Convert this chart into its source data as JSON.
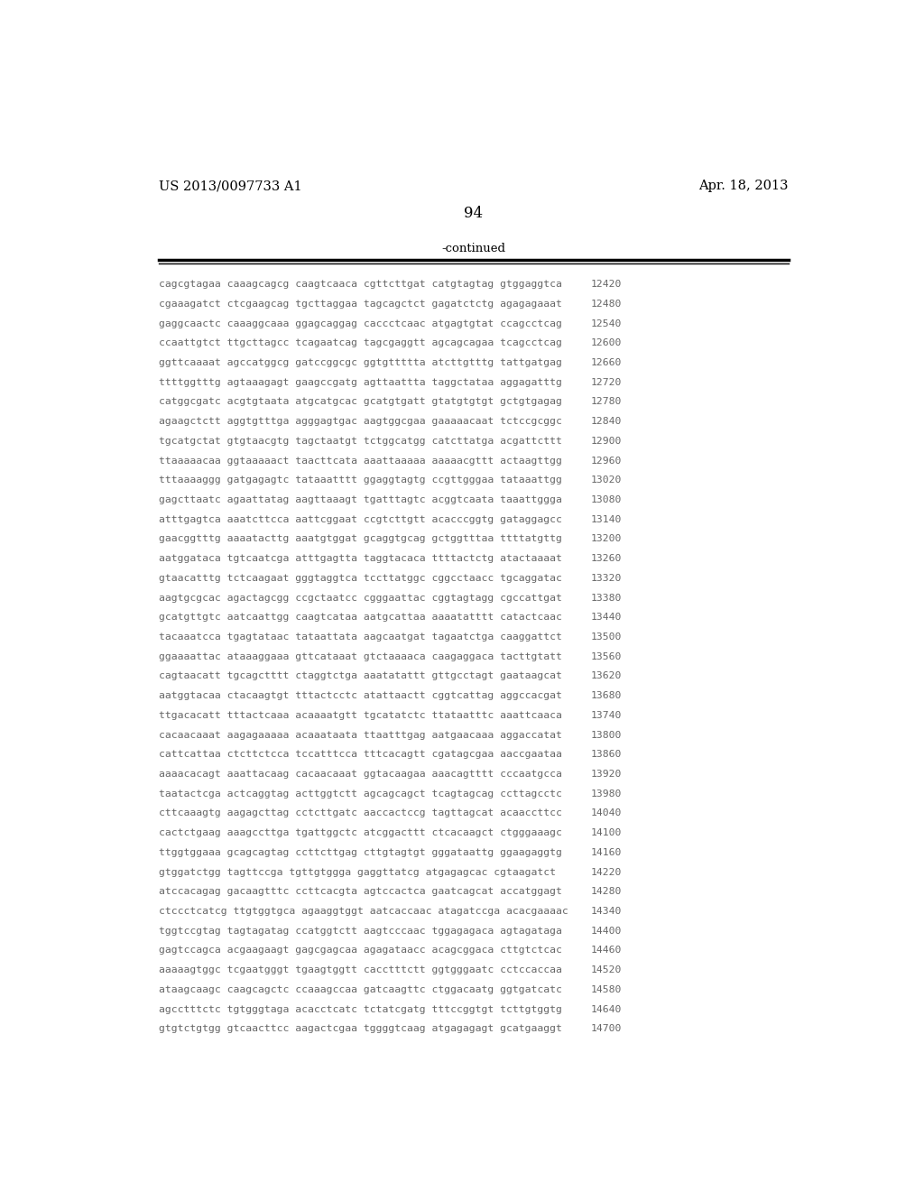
{
  "header_left": "US 2013/0097733 A1",
  "header_right": "Apr. 18, 2013",
  "page_number": "94",
  "continued_text": "-continued",
  "background_color": "#ffffff",
  "text_color": "#000000",
  "seq_color": "#666666",
  "sequence_lines": [
    [
      "cagcgtagaa caaagcagcg caagtcaaca cgttcttgat catgtagtag gtggaggtca",
      "12420"
    ],
    [
      "cgaaagatct ctcgaagcag tgcttaggaa tagcagctct gagatctctg agagagaaat",
      "12480"
    ],
    [
      "gaggcaactc caaaggcaaa ggagcaggag caccctcaac atgagtgtat ccagcctcag",
      "12540"
    ],
    [
      "ccaattgtct ttgcttagcc tcagaatcag tagcgaggtt agcagcagaa tcagcctcag",
      "12600"
    ],
    [
      "ggttcaaaat agccatggcg gatccggcgc ggtgttttta atcttgtttg tattgatgag",
      "12660"
    ],
    [
      "ttttggtttg agtaaagagt gaagccgatg agttaattta taggctataa aggagatttg",
      "12720"
    ],
    [
      "catggcgatc acgtgtaata atgcatgcac gcatgtgatt gtatgtgtgt gctgtgagag",
      "12780"
    ],
    [
      "agaagctctt aggtgtttga agggagtgac aagtggcgaa gaaaaacaat tctccgcggc",
      "12840"
    ],
    [
      "tgcatgctat gtgtaacgtg tagctaatgt tctggcatgg catcttatga acgattcttt",
      "12900"
    ],
    [
      "ttaaaaacaa ggtaaaaact taacttcata aaattaaaaa aaaaacgttt actaagttgg",
      "12960"
    ],
    [
      "tttaaaaggg gatgagagtc tataaatttt ggaggtagtg ccgttgggaa tataaattgg",
      "13020"
    ],
    [
      "gagcttaatc agaattatag aagttaaagt tgatttagtc acggtcaata taaattggga",
      "13080"
    ],
    [
      "atttgagtca aaatcttcca aattcggaat ccgtcttgtt acacccggtg gataggagcc",
      "13140"
    ],
    [
      "gaacggtttg aaaatacttg aaatgtggat gcaggtgcag gctggtttaa ttttatgttg",
      "13200"
    ],
    [
      "aatggataca tgtcaatcga atttgagtta taggtacaca ttttactctg atactaaaat",
      "13260"
    ],
    [
      "gtaacatttg tctcaagaat gggtaggtca tccttatggc cggcctaacc tgcaggatac",
      "13320"
    ],
    [
      "aagtgcgcac agactagcgg ccgctaatcc cgggaattac cggtagtagg cgccattgat",
      "13380"
    ],
    [
      "gcatgttgtc aatcaattgg caagtcataa aatgcattaa aaaatatttt catactcaac",
      "13440"
    ],
    [
      "tacaaatcca tgagtataac tataattata aagcaatgat tagaatctga caaggattct",
      "13500"
    ],
    [
      "ggaaaattac ataaaggaaa gttcataaat gtctaaaaca caagaggaca tacttgtatt",
      "13560"
    ],
    [
      "cagtaacatt tgcagctttt ctaggtctga aaatatattt gttgcctagt gaataagcat",
      "13620"
    ],
    [
      "aatggtacaa ctacaagtgt tttactcctc atattaactt cggtcattag aggccacgat",
      "13680"
    ],
    [
      "ttgacacatt tttactcaaa acaaaatgtt tgcatatctc ttataatttc aaattcaaca",
      "13740"
    ],
    [
      "cacaacaaat aagagaaaaa acaaataata ttaatttgag aatgaacaaa aggaccatat",
      "13800"
    ],
    [
      "cattcattaa ctcttctcca tccatttcca tttcacagtt cgatagcgaa aaccgaataa",
      "13860"
    ],
    [
      "aaaacacagt aaattacaag cacaacaaat ggtacaagaa aaacagtttt cccaatgcca",
      "13920"
    ],
    [
      "taatactcga actcaggtag acttggtctt agcagcagct tcagtagcag ccttagcctc",
      "13980"
    ],
    [
      "cttcaaagtg aagagcttag cctcttgatc aaccactccg tagttagcat acaaccttcc",
      "14040"
    ],
    [
      "cactctgaag aaagccttga tgattggctc atcggacttt ctcacaagct ctgggaaagc",
      "14100"
    ],
    [
      "ttggtggaaa gcagcagtag ccttcttgag cttgtagtgt gggataattg ggaagaggtg",
      "14160"
    ],
    [
      "gtggatctgg tagttccga tgttgtggga gaggttatcg atgagagcac cgtaagatct",
      "14220"
    ],
    [
      "atccacagag gacaagtttc ccttcacgta agtccactca gaatcagcat accatggagt",
      "14280"
    ],
    [
      "ctccctcatcg ttgtggtgca agaaggtggt aatcaccaac atagatccga acacgaaaac",
      "14340"
    ],
    [
      "tggtccgtag tagtagatag ccatggtctt aagtcccaac tggagagaca agtagataga",
      "14400"
    ],
    [
      "gagtccagca acgaagaagt gagcgagcaa agagataacc acagcggaca cttgtctcac",
      "14460"
    ],
    [
      "aaaaagtggc tcgaatgggt tgaagtggtt cacctttctt ggtgggaatc cctccaccaa",
      "14520"
    ],
    [
      "ataagcaagc caagcagctc ccaaagccaa gatcaagttc ctggacaatg ggtgatcatc",
      "14580"
    ],
    [
      "agcctttctc tgtgggtaga acacctcatc tctatcgatg tttccggtgt tcttgtggtg",
      "14640"
    ],
    [
      "gtgtctgtgg gtcaacttcc aagactcgaa tggggtcaag atgagagagt gcatgaaggt",
      "14700"
    ]
  ]
}
